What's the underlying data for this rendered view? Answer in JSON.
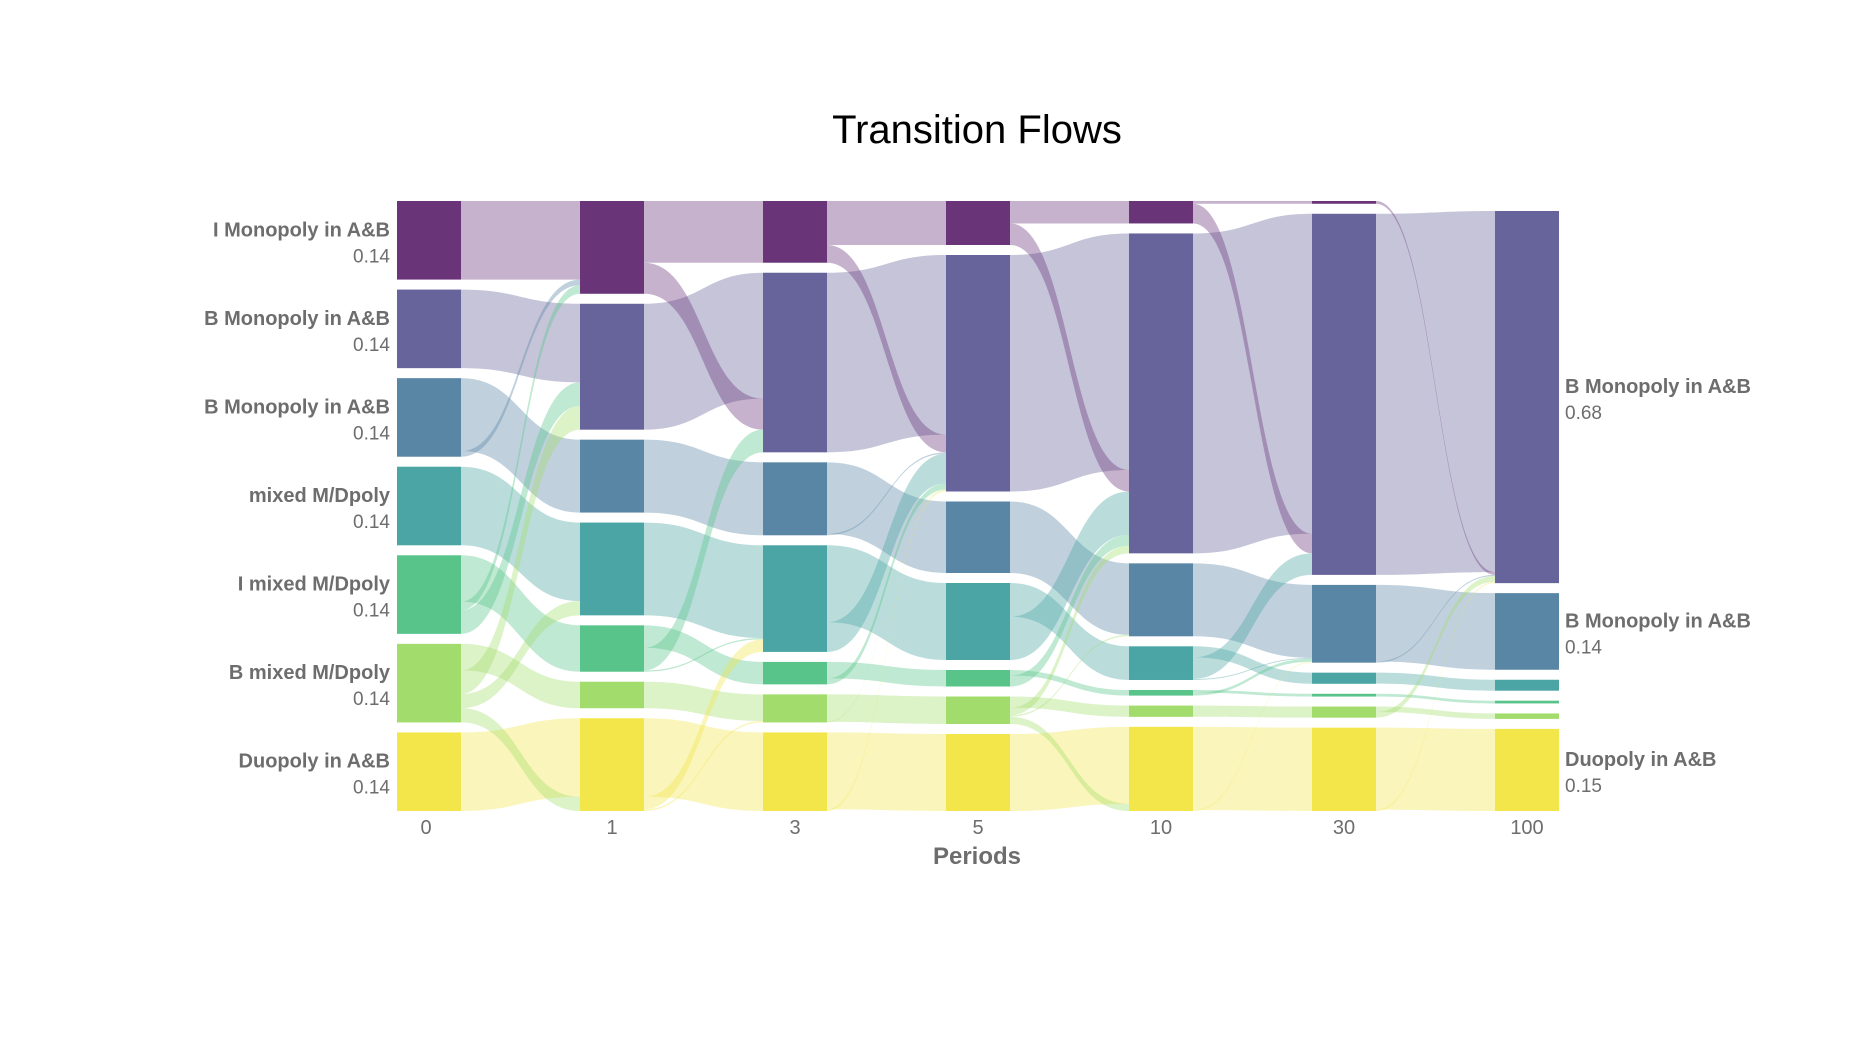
{
  "chart_data": {
    "type": "sankey",
    "title": "Transition Flows",
    "xlabel": "Periods",
    "periods": [
      "0",
      "1",
      "3",
      "5",
      "10",
      "30",
      "100"
    ],
    "states": [
      {
        "name": "I Monopoly in A&B",
        "color": "#6a3478"
      },
      {
        "name": "B Monopoly in A&B",
        "color": "#67649c"
      },
      {
        "name": "B Monopoly in A&B",
        "color": "#5a86a5"
      },
      {
        "name": "mixed M/Dpoly",
        "color": "#4aa5a4"
      },
      {
        "name": "I mixed M/Dpoly",
        "color": "#58c48a"
      },
      {
        "name": "B mixed M/Dpoly",
        "color": "#a2dc6c"
      },
      {
        "name": "Duopoly in A&B",
        "color": "#f3e64a"
      }
    ],
    "shares": [
      [
        0.14,
        0.14,
        0.14,
        0.14,
        0.14,
        0.14,
        0.14
      ],
      [
        0.14,
        0.19,
        0.11,
        0.14,
        0.07,
        0.04,
        0.14
      ],
      [
        0.11,
        0.32,
        0.13,
        0.19,
        0.04,
        0.05,
        0.14
      ],
      [
        0.08,
        0.43,
        0.13,
        0.14,
        0.03,
        0.05,
        0.14
      ],
      [
        0.04,
        0.57,
        0.13,
        0.06,
        0.01,
        0.02,
        0.15
      ],
      [
        0.005,
        0.65,
        0.14,
        0.02,
        0.005,
        0.02,
        0.15
      ],
      [
        0.0,
        0.68,
        0.14,
        0.02,
        0.005,
        0.01,
        0.15
      ]
    ],
    "labels_left": [
      {
        "name": "I Monopoly in A&B",
        "value": "0.14"
      },
      {
        "name": "B Monopoly in A&B",
        "value": "0.14"
      },
      {
        "name": "B Monopoly in A&B",
        "value": "0.14"
      },
      {
        "name": "mixed M/Dpoly",
        "value": "0.14"
      },
      {
        "name": "I mixed M/Dpoly",
        "value": "0.14"
      },
      {
        "name": "B mixed M/Dpoly",
        "value": "0.14"
      },
      {
        "name": "Duopoly in A&B",
        "value": "0.14"
      }
    ],
    "labels_right": [
      {
        "name": "B Monopoly in A&B",
        "value": "0.68",
        "state": 1
      },
      {
        "name": "B Monopoly in A&B",
        "value": "0.14",
        "state": 2
      },
      {
        "name": "Duopoly in A&B",
        "value": "0.15",
        "state": 6
      }
    ]
  }
}
